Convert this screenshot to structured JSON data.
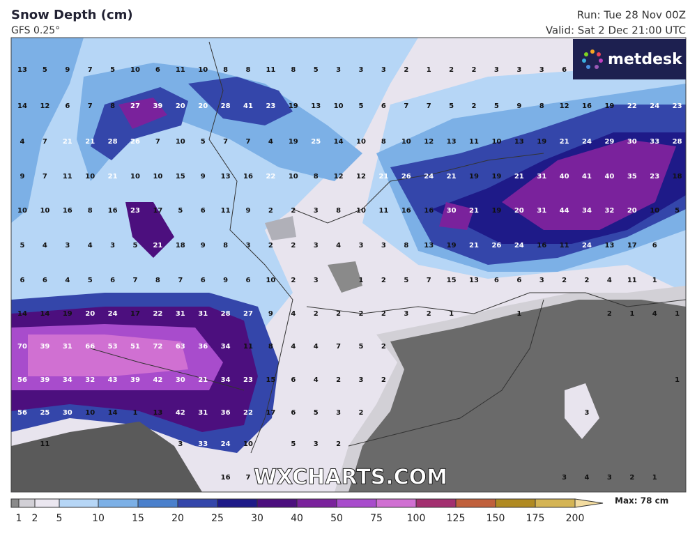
{
  "header": {
    "title": "Snow Depth (cm)",
    "subtitle": "GFS 0.25°",
    "run": "Run: Tue 28 Nov 00Z",
    "valid": "Valid: Sat 2 Dec 21:00 UTC"
  },
  "logo": "metdesk",
  "watermark": "WXCHARTS.COM",
  "grid": {
    "rows": [
      [
        13,
        5,
        9,
        7,
        5,
        10,
        6,
        11,
        10,
        8,
        8,
        11,
        8,
        5,
        3,
        3,
        3,
        2,
        1,
        2,
        2,
        3,
        3,
        3,
        6
      ],
      [
        14,
        12,
        6,
        7,
        8,
        27,
        39,
        20,
        20,
        28,
        41,
        23,
        19,
        13,
        10,
        5,
        6,
        7,
        7,
        5,
        2,
        5,
        9,
        8,
        12,
        16,
        19,
        22,
        24,
        23
      ],
      [
        4,
        7,
        21,
        21,
        28,
        26,
        7,
        10,
        5,
        7,
        7,
        4,
        19,
        25,
        14,
        10,
        8,
        10,
        12,
        13,
        11,
        10,
        13,
        19,
        21,
        24,
        29,
        30,
        33,
        28
      ],
      [
        9,
        7,
        11,
        10,
        21,
        10,
        10,
        15,
        9,
        13,
        16,
        22,
        10,
        8,
        12,
        12,
        21,
        26,
        24,
        21,
        19,
        19,
        21,
        31,
        40,
        41,
        40,
        35,
        23,
        18
      ],
      [
        10,
        10,
        16,
        8,
        16,
        23,
        17,
        5,
        6,
        11,
        9,
        2,
        2,
        3,
        8,
        10,
        11,
        16,
        16,
        30,
        21,
        19,
        20,
        31,
        44,
        34,
        32,
        20,
        10,
        5
      ],
      [
        5,
        4,
        3,
        4,
        3,
        5,
        21,
        18,
        9,
        8,
        3,
        2,
        2,
        3,
        4,
        3,
        3,
        8,
        13,
        19,
        21,
        26,
        24,
        16,
        11,
        24,
        13,
        17,
        6
      ],
      [
        6,
        6,
        4,
        5,
        6,
        7,
        8,
        7,
        6,
        9,
        6,
        10,
        2,
        3,
        null,
        1,
        2,
        5,
        7,
        15,
        13,
        6,
        6,
        3,
        2,
        2,
        4,
        11,
        1
      ],
      [
        14,
        14,
        19,
        20,
        24,
        17,
        22,
        31,
        31,
        28,
        27,
        9,
        4,
        2,
        2,
        2,
        2,
        3,
        2,
        1,
        null,
        null,
        1,
        null,
        null,
        null,
        2,
        1,
        4,
        1
      ],
      [
        70,
        39,
        31,
        66,
        53,
        51,
        72,
        63,
        36,
        34,
        11,
        8,
        4,
        4,
        7,
        5,
        2
      ],
      [
        56,
        39,
        34,
        32,
        43,
        39,
        42,
        30,
        21,
        34,
        23,
        15,
        6,
        4,
        2,
        3,
        2,
        null,
        null,
        null,
        null,
        null,
        null,
        null,
        null,
        null,
        null,
        null,
        null,
        1
      ],
      [
        56,
        25,
        30,
        10,
        14,
        1,
        13,
        42,
        31,
        36,
        22,
        17,
        6,
        5,
        3,
        2,
        null,
        null,
        null,
        null,
        null,
        null,
        null,
        null,
        null,
        3
      ],
      [
        null,
        11,
        null,
        null,
        null,
        null,
        null,
        3,
        33,
        24,
        10,
        null,
        5,
        3,
        2
      ],
      [
        null,
        null,
        null,
        null,
        null,
        null,
        null,
        null,
        null,
        16,
        7,
        null,
        null,
        null,
        null,
        null,
        null,
        null,
        null,
        null,
        null,
        null,
        null,
        null,
        3,
        4,
        3,
        2,
        1
      ]
    ]
  },
  "colorbar": {
    "ticks": [
      1,
      2,
      5,
      10,
      15,
      20,
      25,
      30,
      40,
      50,
      75,
      100,
      125,
      150,
      175,
      200
    ],
    "colors": [
      "#8a8a8a",
      "#d2d0d6",
      "#ebe7f0",
      "#b6d6f6",
      "#7cb0e6",
      "#4a80cc",
      "#3446aa",
      "#1e1a88",
      "#4c0f7e",
      "#7a229c",
      "#a84ccc",
      "#d070d2",
      "#a33070",
      "#c0603c",
      "#b08a22",
      "#d4b454",
      "#f3dca0"
    ],
    "max_label": "Max: 78 cm"
  }
}
